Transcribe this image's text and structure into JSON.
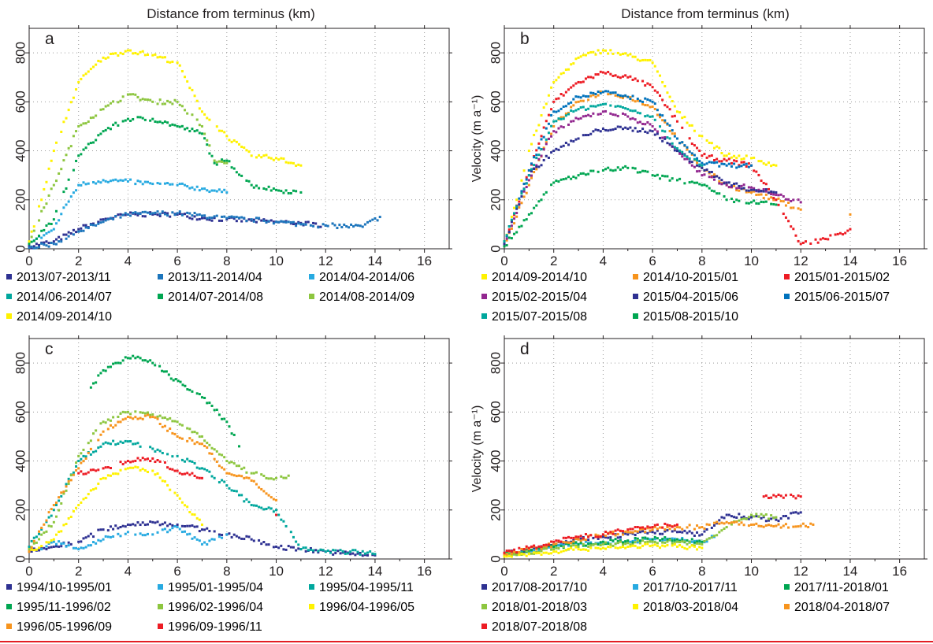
{
  "figure": {
    "top_labels": [
      "Distance from terminus (km)",
      "Distance from terminus (km)"
    ],
    "rule_color": "#e31e24"
  },
  "chart_data": [
    {
      "type": "scatter",
      "panel_label": "a",
      "xlabel": "",
      "ylabel": "",
      "xlim": [
        0,
        17
      ],
      "ylim": [
        0,
        900
      ],
      "x_ticks": [
        0,
        2,
        4,
        6,
        8,
        10,
        12,
        14,
        16
      ],
      "y_ticks": [
        0,
        200,
        400,
        600,
        800
      ],
      "grid": true,
      "legend_position": "below",
      "series": [
        {
          "name": "2013/07-2013/11",
          "color": "#2e3192",
          "x": [
            0,
            1,
            2,
            3,
            4,
            5,
            6,
            7,
            8,
            9,
            10,
            11,
            12
          ],
          "y": [
            10,
            30,
            80,
            120,
            140,
            140,
            140,
            125,
            120,
            115,
            110,
            105,
            95
          ]
        },
        {
          "name": "2013/11-2014/04",
          "color": "#1c75bc",
          "x": [
            0,
            1,
            2,
            3,
            4,
            5,
            6,
            7,
            8,
            9,
            10,
            11,
            12,
            13.5,
            14.2
          ],
          "y": [
            5,
            20,
            70,
            110,
            140,
            145,
            145,
            135,
            125,
            120,
            110,
            100,
            95,
            90,
            130
          ]
        },
        {
          "name": "2014/04-2014/06",
          "color": "#27aae1",
          "x": [
            0,
            1,
            1.5,
            2,
            3,
            4,
            5,
            6,
            7,
            8
          ],
          "y": [
            20,
            80,
            180,
            260,
            280,
            275,
            265,
            260,
            245,
            230
          ]
        },
        {
          "name": "2014/06-2014/07",
          "color": "#00a79d",
          "x": [],
          "y": []
        },
        {
          "name": "2014/07-2014/08",
          "color": "#00a651",
          "x": [
            0,
            1,
            2,
            3,
            4,
            5,
            6,
            7,
            7.5,
            8,
            9,
            10,
            11
          ],
          "y": [
            20,
            120,
            380,
            480,
            530,
            530,
            500,
            470,
            350,
            360,
            260,
            240,
            230
          ]
        },
        {
          "name": "2014/08-2014/09",
          "color": "#8dc63f",
          "x": [
            0,
            1,
            2,
            3,
            4,
            5,
            6,
            7,
            7.5,
            8
          ],
          "y": [
            30,
            260,
            500,
            570,
            630,
            600,
            600,
            500,
            360,
            350
          ]
        },
        {
          "name": "2014/09-2014/10",
          "color": "#fff200",
          "x": [
            0,
            0.5,
            1,
            2,
            3,
            4,
            5,
            6,
            7,
            8,
            9,
            10,
            11
          ],
          "y": [
            30,
            200,
            400,
            680,
            780,
            810,
            790,
            760,
            560,
            460,
            380,
            370,
            340
          ]
        }
      ]
    },
    {
      "type": "scatter",
      "panel_label": "b",
      "xlabel": "",
      "ylabel": "Velocity (m a⁻¹)",
      "xlim": [
        0,
        17
      ],
      "ylim": [
        0,
        900
      ],
      "x_ticks": [
        0,
        2,
        4,
        6,
        8,
        10,
        12,
        14,
        16
      ],
      "y_ticks": [
        0,
        200,
        400,
        600,
        800
      ],
      "grid": true,
      "legend_position": "below",
      "series": [
        {
          "name": "2014/09-2014/10",
          "color": "#fff200",
          "x": [
            0,
            0.5,
            1,
            2,
            3,
            4,
            5,
            6,
            7,
            8,
            9,
            10,
            11
          ],
          "y": [
            30,
            200,
            400,
            680,
            780,
            810,
            790,
            760,
            560,
            460,
            380,
            370,
            340
          ]
        },
        {
          "name": "2014/10-2015/01",
          "color": "#f7941d",
          "x": [
            0,
            1,
            2,
            3,
            4,
            5,
            6,
            7,
            8,
            9,
            10,
            11,
            12,
            14
          ],
          "y": [
            10,
            260,
            500,
            600,
            640,
            620,
            580,
            450,
            330,
            260,
            230,
            200,
            160,
            140
          ]
        },
        {
          "name": "2015/01-2015/02",
          "color": "#ed1c24",
          "x": [
            0,
            1,
            2,
            3,
            4,
            5,
            6,
            7,
            8,
            9,
            10,
            11,
            12,
            13,
            14
          ],
          "y": [
            20,
            320,
            600,
            680,
            720,
            700,
            660,
            520,
            380,
            360,
            340,
            200,
            20,
            40,
            80
          ]
        },
        {
          "name": "2015/02-2015/04",
          "color": "#92278f",
          "x": [
            0,
            1,
            2,
            3,
            4,
            5,
            6,
            7,
            8,
            9,
            10,
            11,
            12
          ],
          "y": [
            20,
            280,
            480,
            530,
            560,
            540,
            500,
            400,
            300,
            260,
            250,
            220,
            190
          ]
        },
        {
          "name": "2015/04-2015/06",
          "color": "#2e3192",
          "x": [
            0,
            1,
            2,
            3,
            4,
            5,
            6,
            7,
            8,
            9,
            10,
            11
          ],
          "y": [
            20,
            300,
            400,
            450,
            490,
            490,
            480,
            400,
            330,
            270,
            240,
            230
          ]
        },
        {
          "name": "2015/06-2015/07",
          "color": "#0072bc",
          "x": [
            0,
            1,
            2,
            3,
            4,
            5,
            6,
            7,
            8,
            9,
            10
          ],
          "y": [
            30,
            320,
            560,
            620,
            640,
            620,
            600,
            450,
            350,
            340,
            340
          ]
        },
        {
          "name": "2015/07-2015/08",
          "color": "#00a79d",
          "x": [
            0,
            1,
            2,
            3,
            4,
            5,
            6,
            7,
            8
          ],
          "y": [
            30,
            300,
            520,
            570,
            590,
            570,
            540,
            410,
            340
          ]
        },
        {
          "name": "2015/08-2015/10",
          "color": "#00a651",
          "x": [
            0,
            1,
            1.5,
            2,
            3,
            4,
            5,
            6,
            7,
            8,
            9,
            10,
            11
          ],
          "y": [
            10,
            140,
            200,
            270,
            300,
            320,
            330,
            300,
            280,
            260,
            200,
            190,
            180
          ]
        }
      ]
    },
    {
      "type": "scatter",
      "panel_label": "c",
      "xlabel": "",
      "ylabel": "",
      "xlim": [
        0,
        17
      ],
      "ylim": [
        0,
        900
      ],
      "x_ticks": [
        0,
        2,
        4,
        6,
        8,
        10,
        12,
        14,
        16
      ],
      "y_ticks": [
        0,
        200,
        400,
        600,
        800
      ],
      "grid": true,
      "legend_position": "below",
      "series": [
        {
          "name": "1994/10-1995/01",
          "color": "#2e3192",
          "x": [
            0,
            1,
            2,
            3,
            4,
            5,
            6,
            7,
            8,
            9,
            10,
            11,
            12,
            13,
            14
          ],
          "y": [
            30,
            50,
            70,
            120,
            140,
            150,
            140,
            120,
            100,
            80,
            50,
            40,
            30,
            20,
            15
          ]
        },
        {
          "name": "1995/01-1995/04",
          "color": "#27aae1",
          "x": [
            0.5,
            1,
            2,
            3,
            4,
            5,
            6,
            7,
            8
          ],
          "y": [
            40,
            70,
            40,
            80,
            110,
            100,
            130,
            60,
            100
          ]
        },
        {
          "name": "1995/04-1995/11",
          "color": "#00a79d",
          "x": [
            0,
            1,
            2,
            3,
            4,
            5,
            6,
            7,
            8,
            9,
            10,
            11,
            12,
            13,
            14
          ],
          "y": [
            50,
            200,
            400,
            470,
            480,
            450,
            420,
            370,
            300,
            220,
            200,
            40,
            30,
            30,
            20
          ]
        },
        {
          "name": "1995/11-1996/02",
          "color": "#00a651",
          "x": [
            2.5,
            3,
            3.5,
            4,
            4.5,
            5,
            6.5,
            7,
            8,
            8.5
          ],
          "y": [
            700,
            770,
            800,
            820,
            820,
            800,
            690,
            660,
            560,
            460
          ]
        },
        {
          "name": "1996/02-1996/04",
          "color": "#8dc63f",
          "x": [
            0,
            1,
            2,
            3,
            4,
            5,
            6,
            7,
            8,
            9,
            10,
            10.5
          ],
          "y": [
            40,
            150,
            420,
            560,
            600,
            590,
            560,
            500,
            400,
            350,
            330,
            340
          ]
        },
        {
          "name": "1996/04-1996/05",
          "color": "#fff200",
          "x": [
            0,
            1,
            2,
            3,
            4,
            5,
            6,
            7
          ],
          "y": [
            30,
            80,
            220,
            330,
            370,
            360,
            260,
            140
          ]
        },
        {
          "name": "1996/05-1996/09",
          "color": "#f7941d",
          "x": [
            0,
            1,
            2,
            3,
            4,
            5,
            6,
            7,
            8,
            9,
            10
          ],
          "y": [
            30,
            220,
            370,
            520,
            580,
            580,
            500,
            470,
            350,
            320,
            240
          ]
        },
        {
          "name": "1996/09-1996/11",
          "color": "#ed1c24",
          "x": [
            2,
            3,
            4,
            5,
            6,
            7,
            10
          ],
          "y": [
            350,
            370,
            400,
            410,
            360,
            330,
            180
          ]
        }
      ]
    },
    {
      "type": "scatter",
      "panel_label": "d",
      "xlabel": "",
      "ylabel": "Velocity (m a⁻¹)",
      "xlim": [
        0,
        17
      ],
      "ylim": [
        0,
        900
      ],
      "x_ticks": [
        0,
        2,
        4,
        6,
        8,
        10,
        12,
        14,
        16
      ],
      "y_ticks": [
        0,
        200,
        400,
        600,
        800
      ],
      "grid": true,
      "legend_position": "below",
      "series": [
        {
          "name": "2017/08-2017/10",
          "color": "#2e3192",
          "x": [
            0,
            1,
            2,
            3,
            4,
            5,
            6,
            7,
            8,
            9,
            10,
            11,
            12
          ],
          "y": [
            20,
            40,
            60,
            80,
            90,
            100,
            110,
            110,
            100,
            180,
            170,
            160,
            190
          ]
        },
        {
          "name": "2017/10-2017/11",
          "color": "#27aae1",
          "x": [
            0,
            1,
            2,
            3,
            4,
            5,
            6,
            7,
            8,
            8.5
          ],
          "y": [
            20,
            30,
            50,
            60,
            70,
            70,
            80,
            80,
            70,
            90
          ]
        },
        {
          "name": "2017/11-2018/01",
          "color": "#00a651",
          "x": [
            0,
            1,
            2,
            3,
            4,
            5,
            6,
            7,
            8
          ],
          "y": [
            20,
            35,
            50,
            60,
            70,
            75,
            80,
            80,
            70
          ]
        },
        {
          "name": "2018/01-2018/03",
          "color": "#8dc63f",
          "x": [
            0,
            1,
            2,
            3,
            4,
            5,
            6,
            7,
            8,
            9,
            10,
            11
          ],
          "y": [
            15,
            25,
            40,
            50,
            60,
            65,
            70,
            70,
            60,
            130,
            180,
            170
          ]
        },
        {
          "name": "2018/03-2018/04",
          "color": "#fff200",
          "x": [
            0,
            1,
            2,
            3,
            4,
            5,
            6,
            7,
            8
          ],
          "y": [
            10,
            20,
            30,
            40,
            45,
            50,
            55,
            50,
            45
          ]
        },
        {
          "name": "2018/04-2018/07",
          "color": "#f7941d",
          "x": [
            0,
            1,
            2,
            3,
            4,
            5,
            6,
            7,
            8,
            9,
            10,
            11,
            12,
            12.5
          ],
          "y": [
            20,
            40,
            60,
            80,
            100,
            110,
            120,
            130,
            130,
            150,
            140,
            135,
            135,
            140
          ]
        },
        {
          "name": "2018/07-2018/08",
          "color": "#ed1c24",
          "x": [
            0,
            1,
            2,
            3,
            4,
            5,
            6,
            7,
            10.5,
            11,
            12
          ],
          "y": [
            25,
            45,
            70,
            90,
            100,
            120,
            130,
            140,
            255,
            255,
            255
          ]
        }
      ]
    }
  ]
}
